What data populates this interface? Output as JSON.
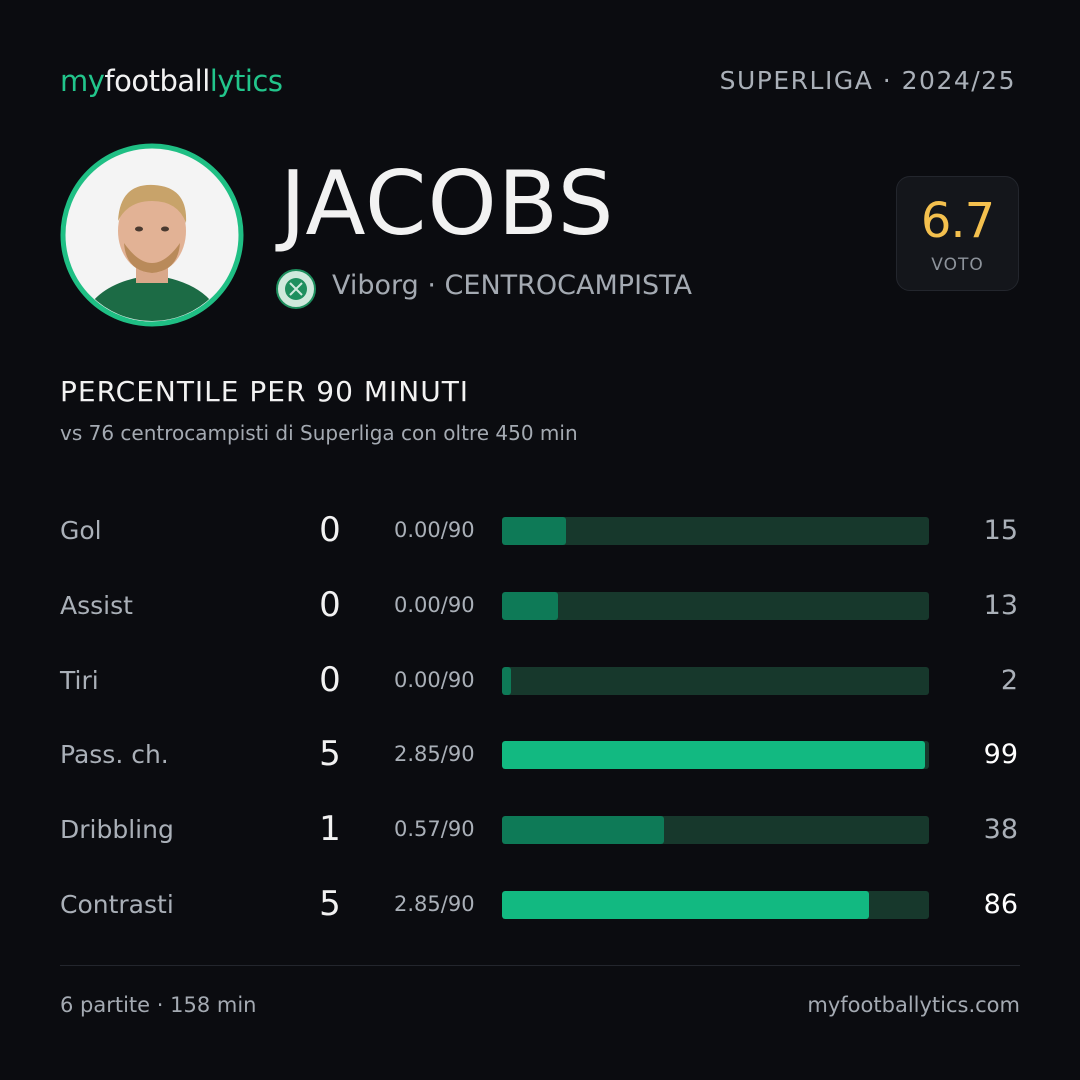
{
  "header": {
    "logo": [
      "my",
      "football",
      "lytics"
    ],
    "league": "SUPERLIGA · 2024/25"
  },
  "player": {
    "name": "JACOBS",
    "club_line": "Viborg · CENTROCAMPISTA",
    "rating": "6.7",
    "rating_label": "VOTO"
  },
  "section": {
    "title": "PERCENTILE  PER 90 MINUTI",
    "subtitle": "vs 76 centrocampisti  di Superliga con oltre 450 min"
  },
  "xlim": [
    0,
    100
  ],
  "rows": [
    {
      "label": "Gol",
      "count": 0,
      "per90": "0.00/90",
      "percentile": 15,
      "color": "#0e7a57",
      "highlight": false
    },
    {
      "label": "Assist",
      "count": 0,
      "per90": "0.00/90",
      "percentile": 13,
      "color": "#0e7a57",
      "highlight": false
    },
    {
      "label": "Tiri",
      "count": 0,
      "per90": "0.00/90",
      "percentile": 2,
      "color": "#0e7a57",
      "highlight": false
    },
    {
      "label": "Pass. ch.",
      "count": 5,
      "per90": "2.85/90",
      "percentile": 99,
      "color": "#12b981",
      "highlight": true
    },
    {
      "label": "Dribbling",
      "count": 1,
      "per90": "0.57/90",
      "percentile": 38,
      "color": "#0e7a57",
      "highlight": false
    },
    {
      "label": "Contrasti",
      "count": 5,
      "per90": "2.85/90",
      "percentile": 86,
      "color": "#12b981",
      "highlight": true
    }
  ],
  "footer": {
    "left": "6 partite · 158 min",
    "right": "myfootballytics.com"
  }
}
